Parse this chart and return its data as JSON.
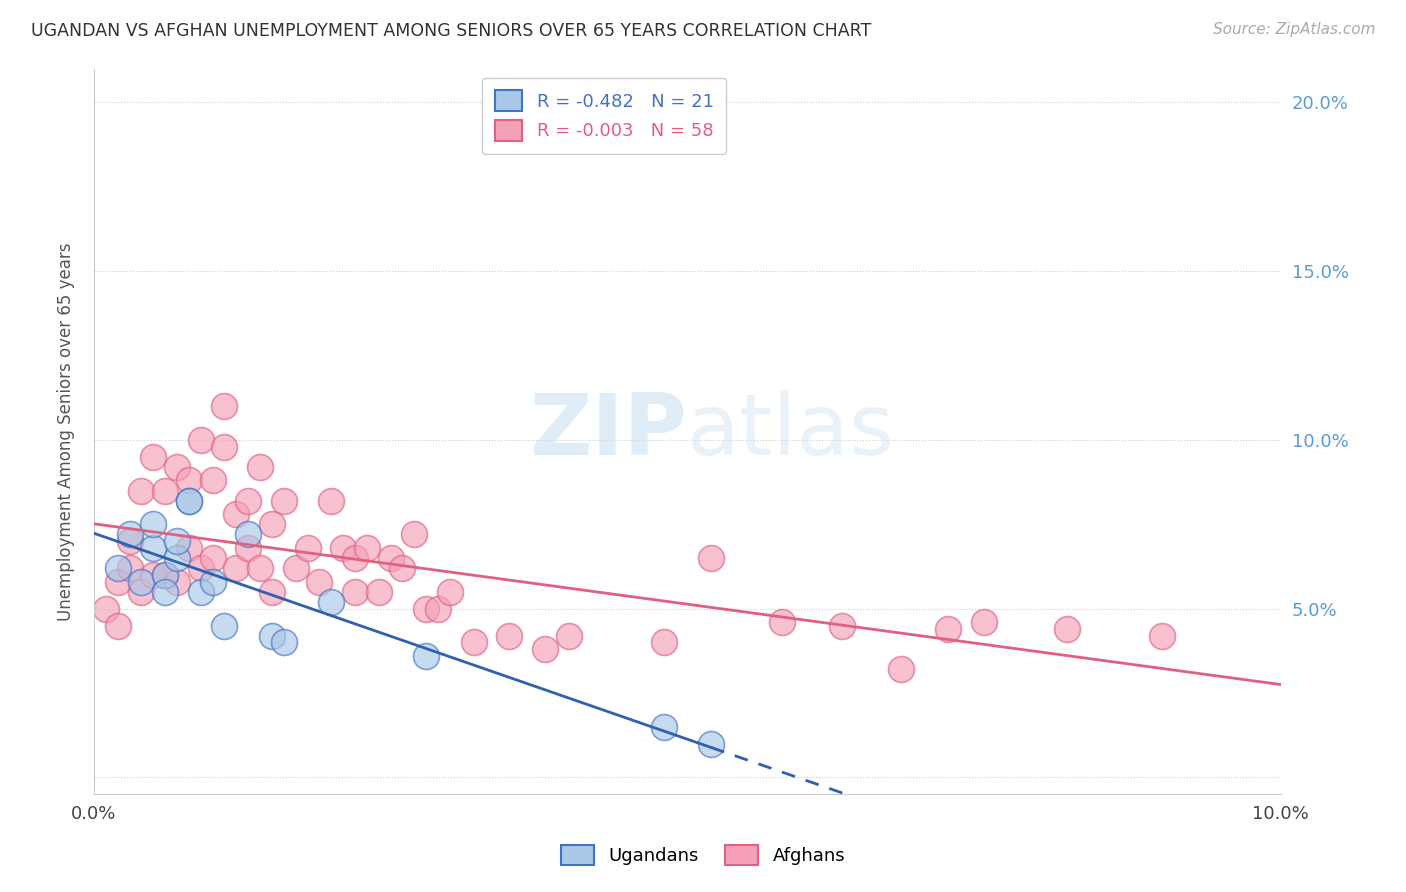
{
  "title": "UGANDAN VS AFGHAN UNEMPLOYMENT AMONG SENIORS OVER 65 YEARS CORRELATION CHART",
  "source": "Source: ZipAtlas.com",
  "ylabel": "Unemployment Among Seniors over 65 years",
  "xlim": [
    0.0,
    0.1
  ],
  "ylim": [
    -0.005,
    0.21
  ],
  "yticks": [
    0.0,
    0.05,
    0.1,
    0.15,
    0.2
  ],
  "yticklabels_right": [
    "",
    "5.0%",
    "10.0%",
    "15.0%",
    "20.0%"
  ],
  "legend_labels": [
    "Ugandans",
    "Afghans"
  ],
  "ugandan_R": "-0.482",
  "ugandan_N": "21",
  "afghan_R": "-0.003",
  "afghan_N": "58",
  "ugandan_color": "#a8c8e8",
  "afghan_color": "#f4a0b8",
  "ugandan_edge_color": "#4472c4",
  "afghan_edge_color": "#e06080",
  "ugandan_line_color": "#3060b0",
  "afghan_line_color": "#e06080",
  "background_color": "#ffffff",
  "grid_color": "#cccccc",
  "ugandan_x": [
    0.002,
    0.003,
    0.004,
    0.005,
    0.005,
    0.006,
    0.006,
    0.007,
    0.007,
    0.008,
    0.008,
    0.009,
    0.01,
    0.011,
    0.013,
    0.015,
    0.016,
    0.02,
    0.028,
    0.048,
    0.052
  ],
  "ugandan_y": [
    0.062,
    0.072,
    0.058,
    0.068,
    0.075,
    0.06,
    0.055,
    0.065,
    0.07,
    0.082,
    0.082,
    0.055,
    0.058,
    0.045,
    0.072,
    0.042,
    0.04,
    0.052,
    0.036,
    0.015,
    0.01
  ],
  "afghan_x": [
    0.001,
    0.002,
    0.002,
    0.003,
    0.003,
    0.004,
    0.004,
    0.005,
    0.005,
    0.006,
    0.006,
    0.007,
    0.007,
    0.008,
    0.008,
    0.009,
    0.009,
    0.01,
    0.01,
    0.011,
    0.011,
    0.012,
    0.012,
    0.013,
    0.013,
    0.014,
    0.014,
    0.015,
    0.015,
    0.016,
    0.017,
    0.018,
    0.019,
    0.02,
    0.021,
    0.022,
    0.022,
    0.023,
    0.024,
    0.025,
    0.026,
    0.027,
    0.028,
    0.029,
    0.03,
    0.032,
    0.035,
    0.038,
    0.04,
    0.048,
    0.052,
    0.058,
    0.063,
    0.068,
    0.072,
    0.075,
    0.082,
    0.09
  ],
  "afghan_y": [
    0.05,
    0.045,
    0.058,
    0.062,
    0.07,
    0.055,
    0.085,
    0.06,
    0.095,
    0.06,
    0.085,
    0.058,
    0.092,
    0.068,
    0.088,
    0.062,
    0.1,
    0.065,
    0.088,
    0.11,
    0.098,
    0.078,
    0.062,
    0.082,
    0.068,
    0.092,
    0.062,
    0.075,
    0.055,
    0.082,
    0.062,
    0.068,
    0.058,
    0.082,
    0.068,
    0.055,
    0.065,
    0.068,
    0.055,
    0.065,
    0.062,
    0.072,
    0.05,
    0.05,
    0.055,
    0.04,
    0.042,
    0.038,
    0.042,
    0.04,
    0.065,
    0.046,
    0.045,
    0.032,
    0.044,
    0.046,
    0.044,
    0.042
  ],
  "afghan_line_y_intercept": 0.066,
  "afghan_line_slope": 0.0,
  "ugandan_line_y_intercept": 0.075,
  "ugandan_line_slope": -1.45
}
